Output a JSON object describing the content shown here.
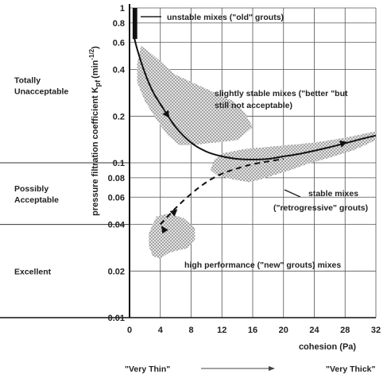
{
  "chart_data": {
    "type": "scatter",
    "title": "",
    "xlabel": "cohesion (Pa)",
    "ylabel": "pressure filtration coefficient K",
    "ylabel_sub": "pf",
    "ylabel_unit": "(min",
    "ylabel_exp": "-1/2",
    "ylabel_close": ")",
    "yscale": "log",
    "xlim": [
      0,
      32
    ],
    "ylim": [
      0.01,
      1
    ],
    "x_ticks": [
      0,
      4,
      8,
      12,
      16,
      20,
      24,
      28,
      32
    ],
    "x_tick_labels": [
      "0",
      "4",
      "8",
      "12",
      "16",
      "20",
      "24",
      "28",
      "32"
    ],
    "y_ticks": [
      1,
      0.8,
      0.6,
      0.4,
      0.2,
      0.1,
      0.08,
      0.06,
      0.04,
      0.02,
      0.01
    ],
    "y_tick_labels": [
      "1",
      "0.8",
      "0.6",
      "0.4",
      "0.2",
      "0.1",
      "0.08",
      "0.06",
      "0.04",
      "0.02",
      "0.01"
    ],
    "grid": true,
    "zones": [
      {
        "label_lines": [
          "Totally",
          "Unacceptable"
        ],
        "y_low": 0.1,
        "y_high": 1
      },
      {
        "label_lines": [
          "Possibly",
          "Acceptable"
        ],
        "y_low": 0.04,
        "y_high": 0.1
      },
      {
        "label_lines": [
          "Excellent"
        ],
        "y_low": 0.01,
        "y_high": 0.04
      }
    ],
    "regions": [
      {
        "name": "unstable",
        "annotation": "unstable mixes (\"old\" grouts)",
        "outline": [
          [
            0.4,
            0.63
          ],
          [
            0.4,
            1.0
          ],
          [
            1.0,
            1.0
          ],
          [
            1.0,
            0.63
          ]
        ]
      },
      {
        "name": "slightly-stable",
        "annotation_lines": [
          "slightly stable mixes (\"better \"but",
          "still not acceptable)"
        ],
        "outline": [
          [
            1,
            0.44
          ],
          [
            1.5,
            0.57
          ],
          [
            3,
            0.5
          ],
          [
            6,
            0.37
          ],
          [
            10,
            0.3
          ],
          [
            13.5,
            0.25
          ],
          [
            15,
            0.21
          ],
          [
            16,
            0.17
          ],
          [
            14,
            0.14
          ],
          [
            11,
            0.135
          ],
          [
            8,
            0.13
          ],
          [
            6.5,
            0.13
          ],
          [
            5,
            0.15
          ],
          [
            3.5,
            0.19
          ],
          [
            2,
            0.25
          ],
          [
            1,
            0.33
          ]
        ]
      },
      {
        "name": "stable",
        "annotation_lines": [
          "stable mixes",
          "(\"retrogressive\" grouts)"
        ],
        "outline": [
          [
            10.5,
            0.09
          ],
          [
            11,
            0.105
          ],
          [
            12,
            0.115
          ],
          [
            15,
            0.123
          ],
          [
            19,
            0.128
          ],
          [
            24,
            0.135
          ],
          [
            28,
            0.145
          ],
          [
            32,
            0.16
          ],
          [
            32,
            0.14
          ],
          [
            29,
            0.12
          ],
          [
            26,
            0.108
          ],
          [
            23,
            0.098
          ],
          [
            21,
            0.09
          ],
          [
            19,
            0.084
          ],
          [
            17,
            0.078
          ],
          [
            15.5,
            0.075
          ],
          [
            13.5,
            0.078
          ],
          [
            11.5,
            0.082
          ]
        ]
      },
      {
        "name": "high-performance",
        "annotation": "high performance (\"new\" grouts) mixes",
        "outline": [
          [
            3,
            0.025
          ],
          [
            2.5,
            0.029
          ],
          [
            2.5,
            0.035
          ],
          [
            3.5,
            0.045
          ],
          [
            5,
            0.047
          ],
          [
            7,
            0.044
          ],
          [
            8.5,
            0.038
          ],
          [
            8.5,
            0.032
          ],
          [
            7.5,
            0.028
          ],
          [
            6,
            0.027
          ],
          [
            5,
            0.026
          ],
          [
            4,
            0.024
          ]
        ]
      }
    ],
    "series": [
      {
        "style": "solid",
        "points": [
          [
            0.5,
            0.68
          ],
          [
            1,
            0.54
          ],
          [
            2,
            0.38
          ],
          [
            3,
            0.29
          ],
          [
            4,
            0.24
          ],
          [
            6,
            0.17
          ],
          [
            8,
            0.135
          ],
          [
            10,
            0.118
          ],
          [
            12,
            0.11
          ],
          [
            14,
            0.106
          ],
          [
            16,
            0.105
          ],
          [
            18,
            0.106
          ],
          [
            20,
            0.11
          ],
          [
            22,
            0.114
          ],
          [
            26,
            0.126
          ],
          [
            30,
            0.142
          ],
          [
            32,
            0.15
          ]
        ],
        "arrows": [
          [
            5,
            0.2
          ],
          [
            28,
            0.135
          ]
        ]
      },
      {
        "style": "dashed",
        "points": [
          [
            4,
            0.04
          ],
          [
            6,
            0.051
          ],
          [
            8,
            0.063
          ],
          [
            10,
            0.075
          ],
          [
            12,
            0.085
          ],
          [
            14,
            0.092
          ],
          [
            16,
            0.098
          ],
          [
            18,
            0.102
          ],
          [
            20,
            0.106
          ]
        ],
        "arrows": [
          [
            6,
            0.049
          ],
          [
            4.3,
            0.038
          ]
        ]
      }
    ],
    "footer": {
      "left": "\"Very Thin\"",
      "right": "\"Very Thick\""
    }
  }
}
